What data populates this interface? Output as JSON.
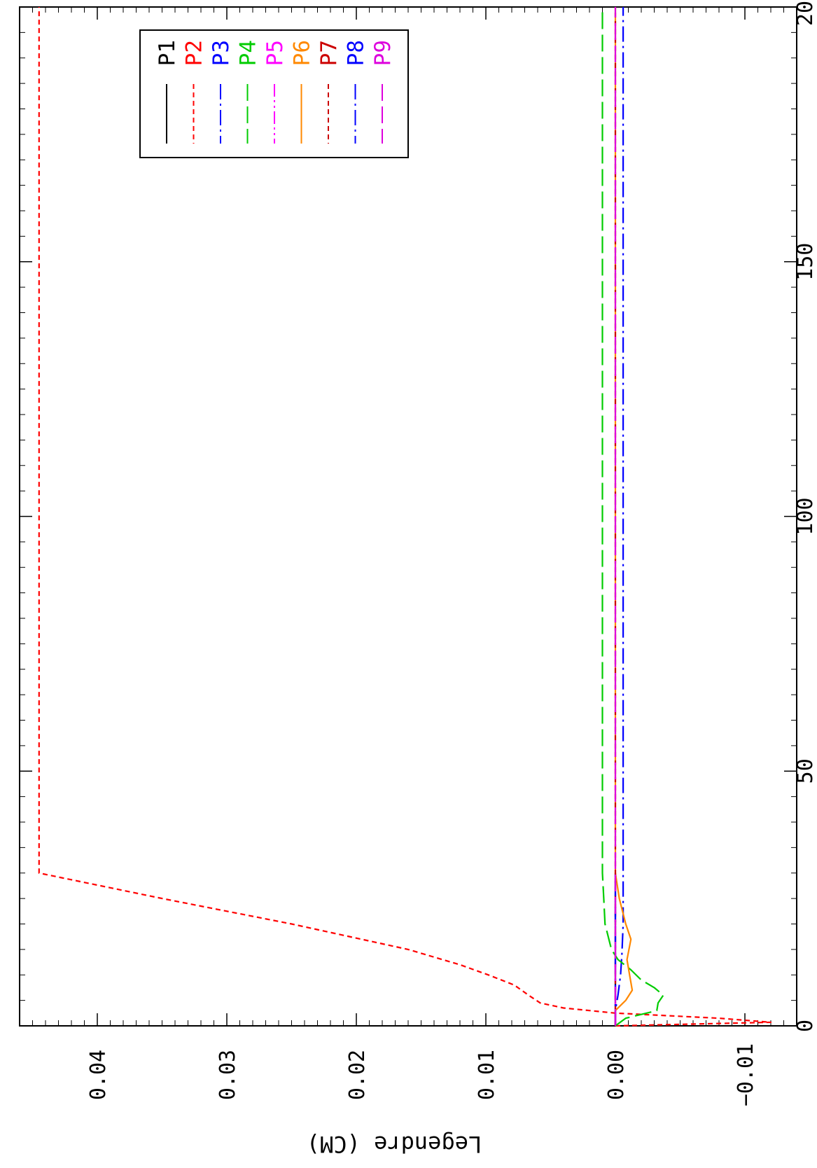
{
  "chart_data": {
    "type": "line",
    "title": "",
    "xlabel": "",
    "ylabel": "Legendre (CM)",
    "xlim": [
      0,
      200
    ],
    "ylim": [
      -0.014,
      0.046
    ],
    "x_ticks": [
      "0",
      "50",
      "100",
      "150",
      "200"
    ],
    "y_ticks": [
      "0.04",
      "0.03",
      "0.02",
      "0.01",
      "0.00",
      "−0.01"
    ],
    "grid": false,
    "legend_position": "top-right",
    "orientation": "rotated-90-clockwise",
    "series": [
      {
        "name": "P1",
        "color": "#000000",
        "dash": "solid",
        "points": [
          [
            0,
            0.0
          ],
          [
            30,
            0.0
          ]
        ]
      },
      {
        "name": "P2",
        "color": "#ff0000",
        "dash": "short-dash",
        "points": [
          [
            0,
            0.0
          ],
          [
            0.7,
            -0.012
          ],
          [
            1.5,
            -0.008
          ],
          [
            2.5,
            0.0
          ],
          [
            3.5,
            0.004
          ],
          [
            4.5,
            0.0058
          ],
          [
            6,
            0.0067
          ],
          [
            8,
            0.0078
          ],
          [
            10,
            0.0098
          ],
          [
            12,
            0.012
          ],
          [
            15,
            0.016
          ],
          [
            20,
            0.025
          ],
          [
            25,
            0.035
          ],
          [
            30,
            0.0445
          ],
          [
            200,
            0.0445
          ]
        ]
      },
      {
        "name": "P3",
        "color": "#0000ff",
        "dash": "dash-dot",
        "points": [
          [
            0,
            0.0
          ],
          [
            3,
            0.0
          ],
          [
            6,
            -0.0002
          ],
          [
            10,
            -0.0004
          ],
          [
            14,
            -0.0005
          ],
          [
            20,
            -0.0006
          ],
          [
            30,
            -0.0006
          ],
          [
            200,
            -0.0006
          ]
        ]
      },
      {
        "name": "P4",
        "color": "#00cc00",
        "dash": "long-dash",
        "points": [
          [
            0,
            0.0
          ],
          [
            1.5,
            -0.0008
          ],
          [
            3,
            -0.0032
          ],
          [
            4.5,
            -0.0033
          ],
          [
            6,
            -0.0037
          ],
          [
            7.5,
            -0.003
          ],
          [
            9,
            -0.002
          ],
          [
            11,
            -0.0012
          ],
          [
            13,
            -0.0002
          ],
          [
            15,
            0.0003
          ],
          [
            20,
            0.0008
          ],
          [
            25,
            0.0009
          ],
          [
            30,
            0.001
          ],
          [
            200,
            0.001
          ]
        ]
      },
      {
        "name": "P5",
        "color": "#ff00ff",
        "dash": "dash-dot-dot",
        "points": [
          [
            0,
            0.0
          ],
          [
            30,
            0.0
          ]
        ]
      },
      {
        "name": "P6",
        "color": "#ff8800",
        "dash": "solid",
        "points": [
          [
            0,
            0.0
          ],
          [
            3,
            0.0
          ],
          [
            5,
            -0.0008
          ],
          [
            7,
            -0.0013
          ],
          [
            10,
            -0.0011
          ],
          [
            13,
            -0.0009
          ],
          [
            17,
            -0.0012
          ],
          [
            20,
            -0.0008
          ],
          [
            25,
            -0.0003
          ],
          [
            30,
            0.0
          ],
          [
            200,
            0.0
          ]
        ]
      },
      {
        "name": "P7",
        "color": "#cc0000",
        "dash": "short-dash",
        "points": [
          [
            0,
            0.0
          ],
          [
            30,
            0.0
          ],
          [
            200,
            0.0
          ]
        ]
      },
      {
        "name": "P8",
        "color": "#0000ff",
        "dash": "dash-dot",
        "points": [
          [
            0,
            0.0
          ],
          [
            30,
            0.0
          ]
        ]
      },
      {
        "name": "P9",
        "color": "#dd00dd",
        "dash": "long-dash",
        "points": [
          [
            0,
            0.0
          ],
          [
            30,
            0.0
          ],
          [
            200,
            0.0
          ]
        ]
      }
    ]
  }
}
